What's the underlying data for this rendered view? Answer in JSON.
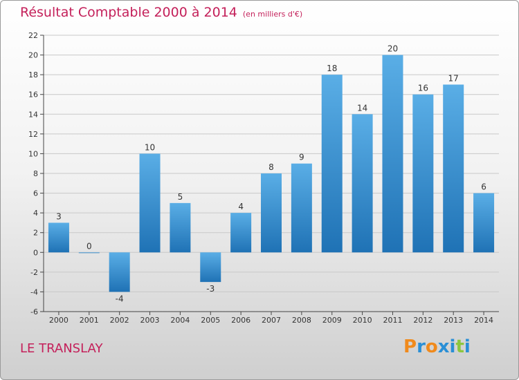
{
  "title": "Résultat Comptable 2000 à 2014",
  "subtitle": "(en milliers d'€)",
  "commune": "LE TRANSLAY",
  "logo": {
    "letters": [
      "P",
      "r",
      "o",
      "x",
      "i",
      "t",
      "i"
    ],
    "colors": [
      "#f08a1c",
      "#2a8fd6",
      "#f08a1c",
      "#2a8fd6",
      "#2a8fd6",
      "#8cc63f",
      "#2a8fd6"
    ]
  },
  "colors": {
    "title": "#c4205a",
    "bar_light": "#5aaee6",
    "bar_dark": "#1f72b5",
    "grid": "#c8c8c8"
  },
  "chart_data": {
    "type": "bar",
    "categories": [
      "2000",
      "2001",
      "2002",
      "2003",
      "2004",
      "2005",
      "2006",
      "2007",
      "2008",
      "2009",
      "2010",
      "2011",
      "2012",
      "2013",
      "2014"
    ],
    "values": [
      3,
      0,
      -4,
      10,
      5,
      -3,
      4,
      8,
      9,
      18,
      14,
      20,
      16,
      17,
      6
    ],
    "ylim": [
      -6,
      22
    ],
    "yticks": [
      -6,
      -4,
      -2,
      0,
      2,
      4,
      6,
      8,
      10,
      12,
      14,
      16,
      18,
      20,
      22
    ],
    "grid": true
  }
}
